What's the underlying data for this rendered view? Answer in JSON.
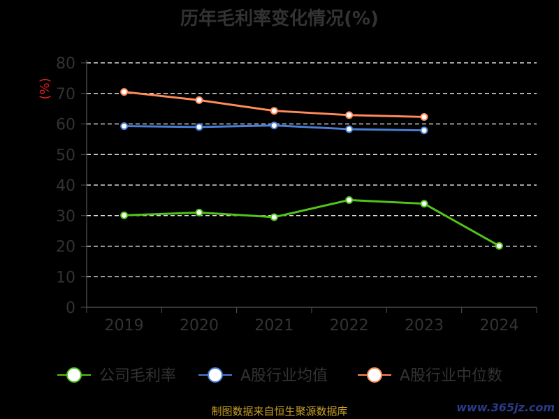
{
  "colors": {
    "background": "#000000",
    "axis": "#555555",
    "grid": "#ffffff",
    "tick_text": "#333333",
    "unit": "#e02020",
    "source": "#c9a227"
  },
  "chart_data": {
    "type": "line",
    "title": "历年毛利率变化情况(%)",
    "ylabel": "(%)",
    "xlabel": "",
    "categories": [
      "2019",
      "2020",
      "2021",
      "2022",
      "2023",
      "2024"
    ],
    "ylim": [
      0,
      80
    ],
    "yticks": [
      0,
      10,
      20,
      30,
      40,
      50,
      60,
      70,
      80
    ],
    "grid": true,
    "legend_position": "bottom",
    "series": [
      {
        "name": "公司毛利率",
        "color": "#52c41a",
        "values": [
          30.1,
          31.0,
          29.5,
          35.1,
          33.9,
          20.1
        ]
      },
      {
        "name": "A股行业均值",
        "color": "#4a7fd6",
        "values": [
          59.3,
          59.0,
          59.5,
          58.3,
          57.9,
          null
        ]
      },
      {
        "name": "A股行业中位数",
        "color": "#ff8c5a",
        "values": [
          70.5,
          67.8,
          64.3,
          62.9,
          62.3,
          null
        ]
      }
    ]
  },
  "source_text": "制图数据来自恒生聚源数据库",
  "watermark": "www.365jz.com"
}
